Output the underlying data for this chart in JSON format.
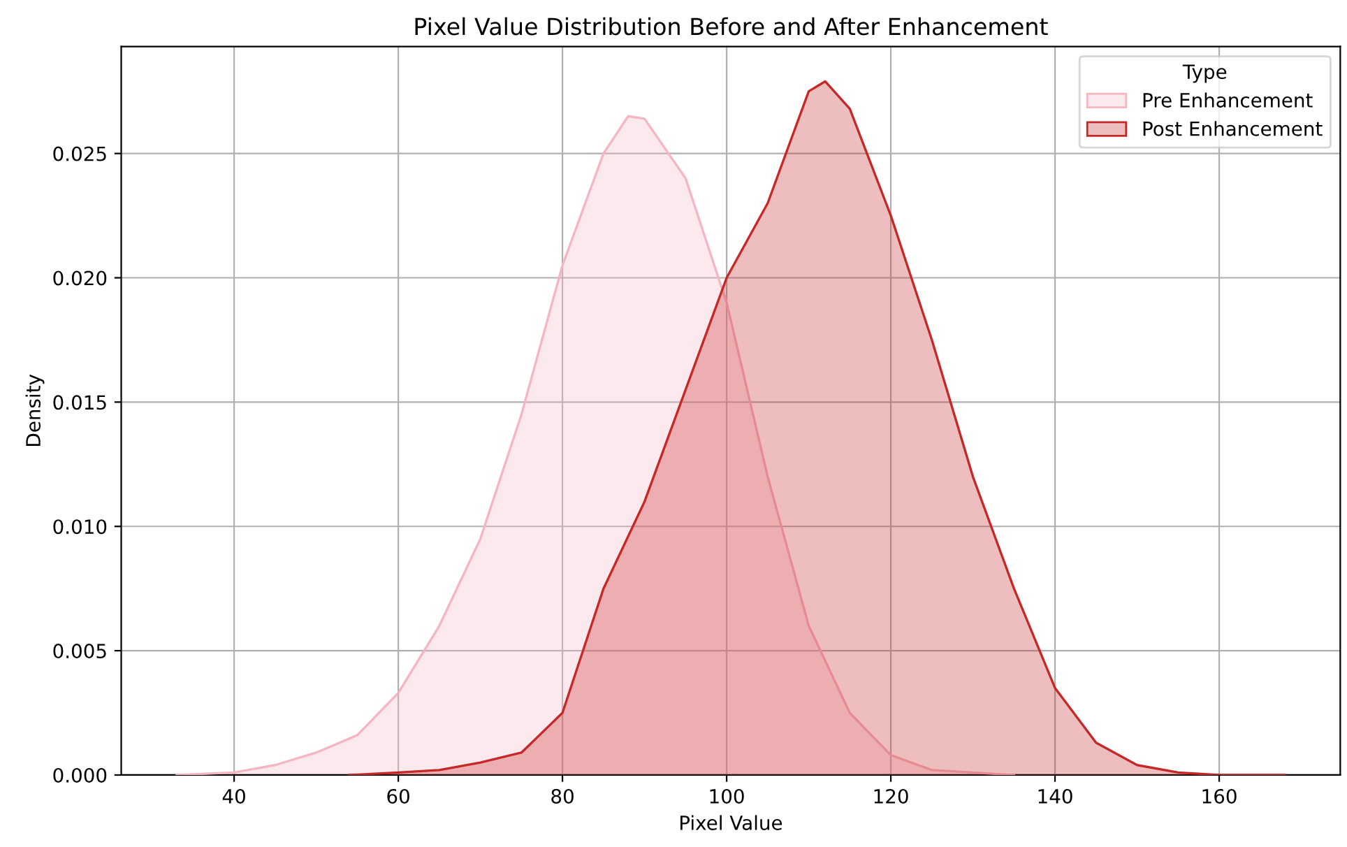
{
  "chart_data": {
    "type": "area",
    "title": "Pixel Value Distribution Before and After Enhancement",
    "xlabel": "Pixel Value",
    "ylabel": "Density",
    "legend_title": "Type",
    "series": [
      {
        "name": "Pre Enhancement",
        "color": "#f4b6c2",
        "x": [
          33,
          40,
          45,
          50,
          55,
          60,
          65,
          70,
          75,
          80,
          85,
          88,
          90,
          95,
          100,
          105,
          110,
          115,
          120,
          125,
          130,
          135
        ],
        "values": [
          0,
          0.0001,
          0.0004,
          0.0009,
          0.0016,
          0.0033,
          0.006,
          0.0095,
          0.0145,
          0.0205,
          0.025,
          0.0265,
          0.0264,
          0.024,
          0.019,
          0.012,
          0.006,
          0.0025,
          0.0008,
          0.0002,
          0.0001,
          0
        ]
      },
      {
        "name": "Post Enhancement",
        "color": "#c62828",
        "x": [
          54,
          60,
          65,
          70,
          75,
          80,
          85,
          90,
          95,
          100,
          105,
          110,
          112,
          115,
          120,
          125,
          130,
          135,
          140,
          145,
          150,
          155,
          160,
          168
        ],
        "values": [
          0,
          0.0001,
          0.0002,
          0.0005,
          0.0009,
          0.0025,
          0.0075,
          0.011,
          0.0155,
          0.02,
          0.023,
          0.0275,
          0.0279,
          0.0268,
          0.0225,
          0.0175,
          0.012,
          0.0075,
          0.0035,
          0.0013,
          0.0004,
          0.0001,
          0,
          0
        ]
      }
    ],
    "xlim": [
      26.25,
      174.75
    ],
    "xticks": [
      40,
      60,
      80,
      100,
      120,
      140,
      160
    ],
    "ylim": [
      0,
      0.0293
    ],
    "yticks": [
      {
        "value": 0,
        "label": "0.000"
      },
      {
        "value": 0.005,
        "label": "0.005"
      },
      {
        "value": 0.01,
        "label": "0.010"
      },
      {
        "value": 0.015,
        "label": "0.015"
      },
      {
        "value": 0.02,
        "label": "0.020"
      },
      {
        "value": 0.025,
        "label": "0.025"
      }
    ],
    "grid": true,
    "legend": "top right"
  }
}
